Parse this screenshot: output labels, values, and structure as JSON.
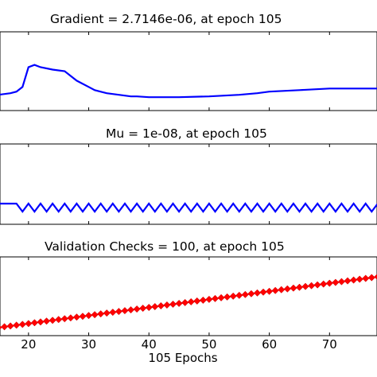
{
  "chart_data": [
    {
      "type": "line",
      "title": "Gradient = 2.7146e-06, at epoch 105",
      "xlim": [
        15,
        80
      ],
      "series": [
        {
          "color": "#0000ff",
          "x": [
            15,
            17,
            18,
            19,
            20,
            21,
            22,
            24,
            26,
            28,
            30,
            31,
            33,
            35,
            37,
            38,
            40,
            45,
            50,
            55,
            58,
            60,
            65,
            70,
            75,
            80
          ],
          "y": [
            0.2,
            0.22,
            0.24,
            0.3,
            0.55,
            0.58,
            0.55,
            0.52,
            0.5,
            0.38,
            0.3,
            0.26,
            0.22,
            0.2,
            0.18,
            0.18,
            0.17,
            0.17,
            0.18,
            0.2,
            0.22,
            0.24,
            0.26,
            0.28,
            0.28,
            0.28
          ]
        }
      ]
    },
    {
      "type": "line",
      "title": "Mu = 1e-08, at epoch 105",
      "xlim": [
        15,
        80
      ],
      "series": [
        {
          "color": "#0000ff",
          "note_pattern": "sawtooth",
          "x": [
            15,
            18,
            19,
            20,
            21,
            22,
            23,
            24,
            25,
            26,
            27,
            28,
            29,
            30,
            31,
            32,
            33,
            34,
            35,
            36,
            37,
            38,
            39,
            40,
            41,
            42,
            43,
            44,
            45,
            46,
            47,
            48,
            49,
            50,
            51,
            52,
            53,
            54,
            55,
            56,
            57,
            58,
            59,
            60,
            61,
            62,
            63,
            64,
            65,
            66,
            67,
            68,
            69,
            70,
            71,
            72,
            73,
            74,
            75,
            76,
            77,
            78,
            79,
            80
          ],
          "y": [
            1,
            1,
            0,
            1,
            0,
            1,
            0,
            1,
            0,
            1,
            0,
            1,
            0,
            1,
            0,
            1,
            0,
            1,
            0,
            1,
            0,
            1,
            0,
            1,
            0,
            1,
            0,
            1,
            0,
            1,
            0,
            1,
            0,
            1,
            0,
            1,
            0,
            1,
            0,
            1,
            0,
            1,
            0,
            1,
            0,
            1,
            0,
            1,
            0,
            1,
            0,
            1,
            0,
            1,
            0,
            1,
            0,
            1,
            0,
            1,
            0,
            1,
            0,
            1
          ]
        }
      ]
    },
    {
      "type": "line",
      "title": "Validation Checks = 100, at epoch 105",
      "xlabel": "105 Epochs",
      "xlim": [
        15,
        80
      ],
      "ylim": [
        0,
        100
      ],
      "x_ticks": [
        "20",
        "30",
        "40",
        "50",
        "60",
        "70"
      ],
      "series": [
        {
          "color": "#0000ff",
          "marker_color": "#ff0000",
          "marker": "diamond",
          "x_start": 15,
          "x_end": 80,
          "y_start": 10,
          "y_end": 75
        }
      ]
    }
  ]
}
